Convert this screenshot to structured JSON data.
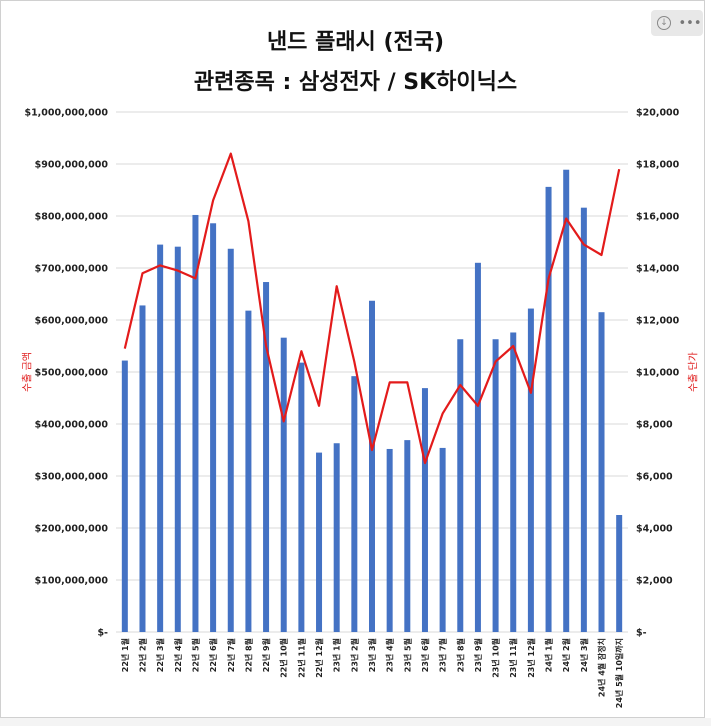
{
  "chart_data": {
    "type": "bar+line",
    "title": "낸드 플래시 (전국)",
    "subtitle": "관련종목 : 삼성전자 / SK하이닉스",
    "ylabel_left": "수출 금액",
    "ylabel_right": "수출 단가",
    "ylim_left": [
      0,
      1000000000
    ],
    "ylim_right": [
      0,
      20000
    ],
    "left_ticks": [
      "$-",
      "$100,000,000",
      "$200,000,000",
      "$300,000,000",
      "$400,000,000",
      "$500,000,000",
      "$600,000,000",
      "$700,000,000",
      "$800,000,000",
      "$900,000,000",
      "$1,000,000,000"
    ],
    "right_ticks": [
      "$-",
      "$2,000",
      "$4,000",
      "$6,000",
      "$8,000",
      "$10,000",
      "$12,000",
      "$14,000",
      "$16,000",
      "$18,000",
      "$20,000"
    ],
    "categories": [
      "22년 1월",
      "22년 2월",
      "22년 3월",
      "22년 4월",
      "22년 5월",
      "22년 6월",
      "22년 7월",
      "22년 8월",
      "22년 9월",
      "22년 10월",
      "22년 11월",
      "22년 12월",
      "23년 1월",
      "23년 2월",
      "23년 3월",
      "23년 4월",
      "23년 5월",
      "23년 6월",
      "23년 7월",
      "23년 8월",
      "23년 9월",
      "23년 10월",
      "23년 11월",
      "23년 12월",
      "24년 1월",
      "24년 2월",
      "24년 3월",
      "24년 4월 잠정치",
      "24년 5월 10일까지"
    ],
    "series": [
      {
        "kind": "bar",
        "color": "#4472c4",
        "values": [
          522000000,
          628000000,
          745000000,
          741000000,
          802000000,
          786000000,
          737000000,
          618000000,
          673000000,
          566000000,
          518000000,
          345000000,
          363000000,
          492000000,
          637000000,
          352000000,
          369000000,
          469000000,
          354000000,
          563000000,
          710000000,
          563000000,
          576000000,
          622000000,
          856000000,
          889000000,
          816000000,
          615000000,
          225000000
        ]
      },
      {
        "kind": "line",
        "color": "#e31b1b",
        "values": [
          10900,
          13800,
          14100,
          13900,
          13600,
          16600,
          18400,
          15800,
          11000,
          8100,
          10800,
          8700,
          13300,
          10400,
          7000,
          9600,
          9600,
          6500,
          8400,
          9500,
          8700,
          10400,
          11000,
          9200,
          13600,
          15900,
          14900,
          14500,
          17800
        ]
      }
    ]
  },
  "toolbar": {
    "icon1": "download-icon",
    "icon2": "more-icon",
    "icon1_glyph": "↓",
    "icon2_glyph": "•••"
  }
}
